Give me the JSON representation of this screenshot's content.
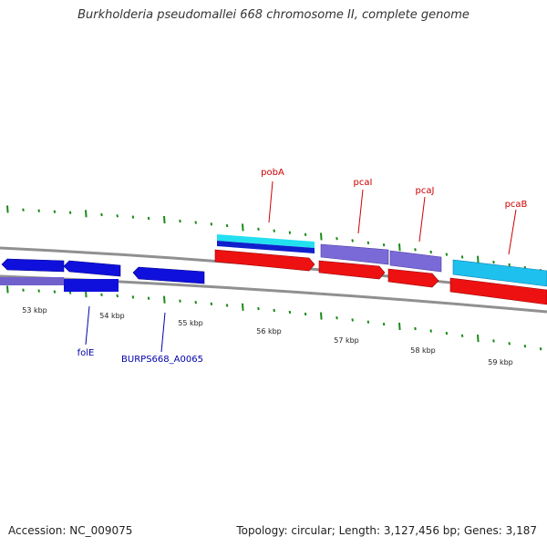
{
  "title": "Burkholderia pseudomallei 668 chromosome II, complete genome",
  "accession": "Accession: NC_009075",
  "summary": "Topology: circular; Length: 3,127,456 bp; Genes: 3,187",
  "colors": {
    "tick": "#1a8a1a",
    "backbone": "#888888",
    "label_forward": "#cc0000",
    "label_reverse": "#0000aa",
    "tick_label": "#222222"
  },
  "ruler": {
    "labels": [
      "53 kbp",
      "54 kbp",
      "55 kbp",
      "56 kbp",
      "57 kbp",
      "58 kbp",
      "59 kbp"
    ]
  },
  "genes": [
    {
      "name": "pobA",
      "strand": "+"
    },
    {
      "name": "pcaI",
      "strand": "+"
    },
    {
      "name": "pcaJ",
      "strand": "+"
    },
    {
      "name": "pcaB",
      "strand": "+"
    },
    {
      "name": "folE",
      "strand": "-"
    },
    {
      "name": "BURPS668_A0065",
      "strand": "-"
    }
  ]
}
